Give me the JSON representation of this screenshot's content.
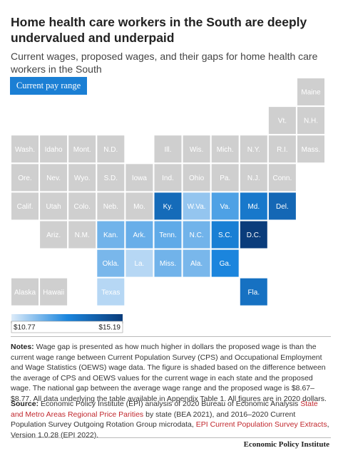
{
  "chart_data": {
    "type": "tilemap",
    "title": "Home health care workers in the South are deeply undervalued and underpaid",
    "subtitle": "Current wages, proposed wages, and their gaps for home health care workers in the South",
    "button": "Current pay range",
    "no_data_color": "#cfcfcf",
    "colors": [
      "#dcebf9",
      "#1b86de",
      "#0a3c7b"
    ],
    "legend_ticks": [
      {
        "value": 10.77,
        "label": "$10.77"
      },
      {
        "value": 15.19,
        "label": "$15.19"
      }
    ],
    "tiles": [
      {
        "label": "Maine",
        "value": null
      },
      {
        "label": "Vt.",
        "value": null
      },
      {
        "label": "N.H.",
        "value": null
      },
      {
        "label": "Wash.",
        "value": null
      },
      {
        "label": "Idaho",
        "value": null
      },
      {
        "label": "Mont.",
        "value": null
      },
      {
        "label": "N.D.",
        "value": null
      },
      {
        "label": "Ill.",
        "value": null
      },
      {
        "label": "Wis.",
        "value": null
      },
      {
        "label": "Mich.",
        "value": null
      },
      {
        "label": "N.Y.",
        "value": null
      },
      {
        "label": "R.I.",
        "value": null
      },
      {
        "label": "Mass.",
        "value": null
      },
      {
        "label": "Ore.",
        "value": null
      },
      {
        "label": "Nev.",
        "value": null
      },
      {
        "label": "Wyo.",
        "value": null
      },
      {
        "label": "S.D.",
        "value": null
      },
      {
        "label": "Iowa",
        "value": null
      },
      {
        "label": "Ind.",
        "value": null
      },
      {
        "label": "Ohio",
        "value": null
      },
      {
        "label": "Pa.",
        "value": null
      },
      {
        "label": "N.J.",
        "value": null
      },
      {
        "label": "Conn.",
        "value": null
      },
      {
        "label": "Calif.",
        "value": null
      },
      {
        "label": "Utah",
        "value": null
      },
      {
        "label": "Colo.",
        "value": null
      },
      {
        "label": "Neb.",
        "value": null
      },
      {
        "label": "Mo.",
        "value": null
      },
      {
        "label": "Ky.",
        "value": 13.8
      },
      {
        "label": "W.Va.",
        "value": 11.6
      },
      {
        "label": "Va.",
        "value": 12.4
      },
      {
        "label": "Md.",
        "value": 13.4
      },
      {
        "label": "Del.",
        "value": 13.9
      },
      {
        "label": "Ariz.",
        "value": null
      },
      {
        "label": "N.M.",
        "value": null
      },
      {
        "label": "Kan.",
        "value": 12.0
      },
      {
        "label": "Ark.",
        "value": 12.1
      },
      {
        "label": "Tenn.",
        "value": 12.2
      },
      {
        "label": "N.C.",
        "value": 12.0
      },
      {
        "label": "S.C.",
        "value": 13.2
      },
      {
        "label": "D.C.",
        "value": 15.19
      },
      {
        "label": "Okla.",
        "value": 11.9
      },
      {
        "label": "La.",
        "value": 11.2
      },
      {
        "label": "Miss.",
        "value": 12.0
      },
      {
        "label": "Ala.",
        "value": 11.9
      },
      {
        "label": "Ga.",
        "value": 13.0
      },
      {
        "label": "Alaska",
        "value": null
      },
      {
        "label": "Hawaii",
        "value": null
      },
      {
        "label": "Texas",
        "value": 11.2
      },
      {
        "label": "Fla.",
        "value": 13.6
      }
    ],
    "notes": {
      "label": "Notes:",
      "text": "Wage gap is presented as how much higher in dollars the proposed wage is than the current wage range between Current Population Survey (CPS) and Occupational Employment and Wage Statistics (OEWS) wage data. The figure is shaded based on the difference between the average of CPS and OEWS values for the current wage in each state and the proposed wage. The national gap between the average wage range and the proposed wage is $8.67–$8.77. All data underlying the table available in Appendix Table 1. All figures are in 2020 dollars."
    },
    "source": {
      "label": "Source:",
      "parts": [
        {
          "text": "Economic Policy Institute (EPI) analysis of 2020 Bureau of Economic Analysis ",
          "link": false
        },
        {
          "text": "State and Metro Areas Regional Price Parities",
          "link": true
        },
        {
          "text": " by state (BEA 2021), and 2016–2020 Current Population Survey Outgoing Rotation Group microdata, ",
          "link": false
        },
        {
          "text": "EPI Current Population Survey Extracts",
          "link": true
        },
        {
          "text": ", Version 1.0.28 (EPI 2022).",
          "link": false
        }
      ]
    },
    "footer": "Economic Policy Institute"
  }
}
